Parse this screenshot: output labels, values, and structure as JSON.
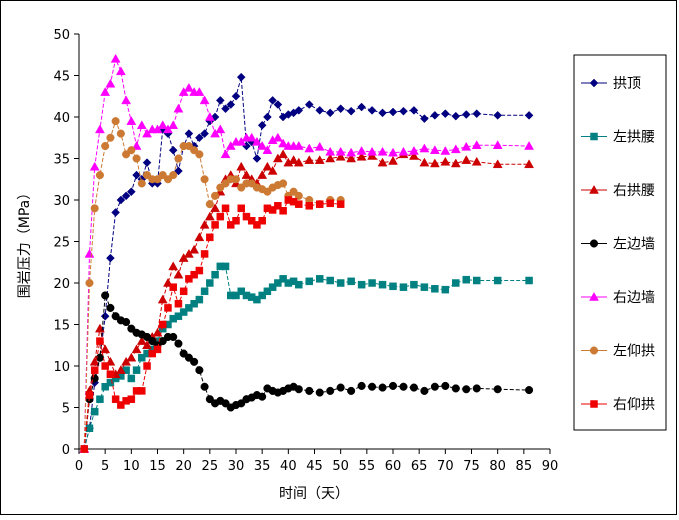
{
  "chart_data": {
    "type": "line",
    "xlabel": "时间（天）",
    "ylabel": "围岩压力（MPa）",
    "xlim": [
      0,
      90
    ],
    "ylim": [
      0,
      50
    ],
    "xticks": [
      0,
      5,
      10,
      15,
      20,
      25,
      30,
      35,
      40,
      45,
      50,
      55,
      60,
      65,
      70,
      75,
      80,
      85,
      90
    ],
    "yticks": [
      0,
      5,
      10,
      15,
      20,
      25,
      30,
      35,
      40,
      45,
      50
    ],
    "grid": false,
    "legend_position": "right",
    "series": [
      {
        "name": "拱顶",
        "color": "#000080",
        "marker": "diamond",
        "x": [
          1,
          2,
          3,
          4,
          5,
          6,
          7,
          8,
          9,
          10,
          11,
          12,
          13,
          14,
          15,
          16,
          17,
          18,
          19,
          20,
          21,
          22,
          23,
          24,
          25,
          26,
          27,
          28,
          29,
          30,
          31,
          32,
          33,
          34,
          35,
          36,
          37,
          38,
          39,
          40,
          41,
          42,
          44,
          46,
          48,
          50,
          52,
          54,
          56,
          58,
          60,
          62,
          64,
          66,
          68,
          70,
          72,
          74,
          76,
          80,
          86
        ],
        "y": [
          0,
          2.5,
          8,
          11,
          16,
          23,
          28.5,
          30,
          30.5,
          31,
          33,
          32.5,
          34.5,
          32,
          32,
          38.5,
          38,
          36,
          33.5,
          36.5,
          38,
          36.5,
          37.5,
          38,
          39.5,
          40,
          42,
          41,
          41.5,
          42.5,
          44.8,
          36.5,
          37,
          35,
          39,
          40,
          42,
          41.5,
          40,
          40.3,
          40.5,
          40.8,
          41.5,
          40.8,
          40.5,
          41,
          40.7,
          41.2,
          40.8,
          40.5,
          40.6,
          40.7,
          40.8,
          39.8,
          40.2,
          40.4,
          40.1,
          40.3,
          40.4,
          40.2,
          40.2
        ]
      },
      {
        "name": "左拱腰",
        "color": "#008080",
        "marker": "square",
        "x": [
          1,
          2,
          3,
          4,
          5,
          6,
          7,
          8,
          9,
          10,
          11,
          12,
          13,
          14,
          15,
          16,
          17,
          18,
          19,
          20,
          21,
          22,
          23,
          24,
          25,
          26,
          27,
          28,
          29,
          30,
          31,
          32,
          33,
          34,
          35,
          36,
          37,
          38,
          39,
          40,
          41,
          42,
          44,
          46,
          48,
          50,
          52,
          54,
          56,
          58,
          60,
          62,
          64,
          66,
          68,
          70,
          72,
          74,
          76,
          80,
          86
        ],
        "y": [
          0,
          2.5,
          4.5,
          6,
          7.5,
          8,
          8.5,
          8.8,
          9.5,
          8.5,
          9.5,
          11,
          11.5,
          12,
          13,
          14.5,
          15,
          15.7,
          16,
          16.5,
          17,
          17.5,
          18,
          19,
          20,
          21,
          22,
          22,
          18.5,
          18.5,
          19,
          18.5,
          18.3,
          18,
          18.5,
          19,
          19.5,
          20,
          20.5,
          20,
          20.2,
          19.8,
          20.2,
          20.5,
          20.3,
          20,
          20.2,
          19.8,
          20,
          19.8,
          19.6,
          19.5,
          19.8,
          19.5,
          19.3,
          19.2,
          20,
          20.4,
          20.3,
          20.3,
          20.3
        ]
      },
      {
        "name": "右拱腰",
        "color": "#CC0000",
        "marker": "triangle",
        "x": [
          1,
          2,
          3,
          4,
          5,
          6,
          7,
          8,
          9,
          10,
          11,
          12,
          13,
          14,
          15,
          16,
          17,
          18,
          19,
          20,
          21,
          22,
          23,
          24,
          25,
          26,
          27,
          28,
          29,
          30,
          31,
          32,
          33,
          34,
          35,
          36,
          37,
          38,
          39,
          40,
          41,
          42,
          44,
          46,
          48,
          50,
          52,
          54,
          56,
          58,
          60,
          62,
          64,
          66,
          68,
          70,
          72,
          74,
          76,
          80,
          86
        ],
        "y": [
          0,
          7,
          10.5,
          14.5,
          12,
          10.5,
          9,
          9.5,
          10.5,
          11,
          12,
          13,
          12.5,
          13.5,
          14,
          18,
          20,
          22,
          21,
          23,
          23.5,
          24,
          25.5,
          27,
          28,
          29,
          31,
          32.5,
          33,
          32,
          34,
          33,
          32.5,
          32,
          33,
          34,
          33.5,
          35,
          35.5,
          34.5,
          34.8,
          34.5,
          34.8,
          34.8,
          35,
          35.2,
          35,
          35.2,
          35.3,
          34.5,
          34.7,
          35.5,
          35.3,
          34.5,
          34.4,
          34.6,
          34.4,
          34.8,
          34.6,
          34.3,
          34.3
        ]
      },
      {
        "name": "左边墙",
        "color": "#000000",
        "marker": "circle",
        "x": [
          1,
          2,
          3,
          4,
          5,
          6,
          7,
          8,
          9,
          10,
          11,
          12,
          13,
          14,
          15,
          16,
          17,
          18,
          19,
          20,
          21,
          22,
          23,
          24,
          25,
          26,
          27,
          28,
          29,
          30,
          31,
          32,
          33,
          34,
          35,
          36,
          37,
          38,
          39,
          40,
          41,
          42,
          44,
          46,
          48,
          50,
          52,
          54,
          56,
          58,
          60,
          62,
          64,
          66,
          68,
          70,
          72,
          74,
          76,
          80,
          86
        ],
        "y": [
          0,
          6,
          8.5,
          11,
          18.5,
          17,
          16,
          15.5,
          15.3,
          14.5,
          14,
          13.8,
          13.5,
          13,
          12.5,
          13,
          13.5,
          13.5,
          12.7,
          11.5,
          11,
          10.5,
          9.5,
          7.5,
          6,
          5.5,
          5.8,
          5.5,
          5,
          5.3,
          5.5,
          6,
          6.2,
          6.5,
          6.3,
          7.3,
          7,
          6.8,
          7,
          7.3,
          7.5,
          7.2,
          7,
          6.8,
          7,
          7.4,
          7,
          7.6,
          7.5,
          7.4,
          7.6,
          7.5,
          7.4,
          7,
          7.5,
          7.6,
          7.3,
          7.2,
          7.3,
          7.2,
          7.1
        ]
      },
      {
        "name": "右边墙",
        "color": "#FF00FF",
        "marker": "triangle",
        "x": [
          1,
          2,
          3,
          4,
          5,
          6,
          7,
          8,
          9,
          10,
          11,
          12,
          13,
          14,
          15,
          16,
          17,
          18,
          19,
          20,
          21,
          22,
          23,
          24,
          25,
          26,
          27,
          28,
          29,
          30,
          31,
          32,
          33,
          34,
          35,
          36,
          37,
          38,
          39,
          40,
          41,
          42,
          44,
          46,
          48,
          50,
          52,
          54,
          56,
          58,
          60,
          62,
          64,
          66,
          68,
          70,
          72,
          74,
          76,
          80,
          86
        ],
        "y": [
          0,
          23.5,
          34,
          38.5,
          43,
          44,
          47,
          45.5,
          42,
          39.5,
          36.5,
          39,
          38,
          38.5,
          38.5,
          39,
          38.5,
          39,
          41,
          43,
          43.5,
          43,
          43,
          42,
          40,
          38,
          38.5,
          35.5,
          36.5,
          37,
          37,
          37.5,
          37.5,
          37,
          36.5,
          36,
          37.2,
          37.5,
          36.8,
          36.5,
          36.5,
          36.5,
          36.2,
          36.4,
          35.8,
          35.8,
          35.7,
          35.9,
          35.8,
          35.8,
          35.7,
          35.8,
          35.9,
          36.2,
          36,
          35.9,
          36.1,
          36.4,
          36.6,
          36.6,
          36.5
        ]
      },
      {
        "name": "左仰拱",
        "color": "#CC7A33",
        "marker": "circle",
        "x": [
          1,
          2,
          3,
          4,
          5,
          6,
          7,
          8,
          9,
          10,
          11,
          12,
          13,
          14,
          15,
          16,
          17,
          18,
          19,
          20,
          21,
          22,
          23,
          24,
          25,
          26,
          27,
          28,
          29,
          30,
          31,
          32,
          33,
          34,
          35,
          36,
          37,
          38,
          39,
          40,
          41,
          42,
          44,
          46,
          48,
          50
        ],
        "y": [
          0,
          20,
          29,
          33,
          36.5,
          37.5,
          39.5,
          38,
          35.5,
          36,
          35,
          32,
          33,
          32.5,
          32.5,
          33,
          32.5,
          33,
          35,
          36.5,
          36.5,
          36,
          35.5,
          32.5,
          29.5,
          30.5,
          31.5,
          32,
          32.5,
          32.5,
          31.5,
          32,
          32,
          31.5,
          31.3,
          31,
          31.5,
          31.8,
          32,
          30.5,
          31,
          30.5,
          30,
          29.5,
          30,
          30
        ]
      },
      {
        "name": "右仰拱",
        "color": "#EE0000",
        "marker": "square",
        "x": [
          1,
          2,
          3,
          4,
          5,
          6,
          7,
          8,
          9,
          10,
          11,
          12,
          13,
          14,
          15,
          16,
          17,
          18,
          19,
          20,
          21,
          22,
          23,
          24,
          25,
          26,
          27,
          28,
          29,
          30,
          31,
          32,
          33,
          34,
          35,
          36,
          37,
          38,
          39,
          40,
          41,
          42,
          44,
          46,
          48,
          50
        ],
        "y": [
          0,
          6.5,
          9.5,
          13,
          10,
          9,
          6,
          5.3,
          5.8,
          6,
          7,
          7,
          10,
          11.5,
          12,
          15,
          17,
          19.5,
          17.5,
          19,
          20.5,
          21,
          21.5,
          23.5,
          25.5,
          27,
          28,
          29,
          27,
          27.5,
          29,
          28,
          27.5,
          27,
          27.5,
          29,
          28.8,
          29.3,
          28.7,
          30,
          29.8,
          29.5,
          29.3,
          29.5,
          29.6,
          29.5
        ]
      }
    ]
  }
}
